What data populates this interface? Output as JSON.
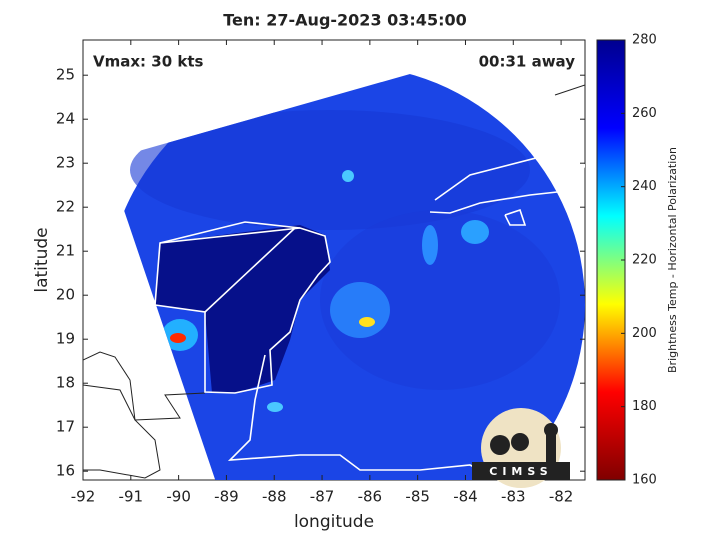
{
  "chart_data": {
    "type": "map",
    "title": "Ten: 27-Aug-2023 03:45:00",
    "annotations": [
      "Vmax: 30 kts",
      "00:31 away"
    ],
    "xlabel": "longitude",
    "ylabel": "latitude",
    "xlim": [
      -92,
      -81.5
    ],
    "ylim": [
      15.8,
      25.8
    ],
    "xticks": [
      -92,
      -91,
      -90,
      -89,
      -88,
      -87,
      -86,
      -85,
      -84,
      -83,
      -82
    ],
    "yticks": [
      16,
      17,
      18,
      19,
      20,
      21,
      22,
      23,
      24,
      25
    ],
    "colorbar": {
      "label": "Brightness Temp - Horizontal Polarization",
      "lim": [
        160,
        280
      ],
      "ticks": [
        160,
        180,
        200,
        220,
        240,
        260,
        280
      ],
      "colormap": [
        "#800000",
        "#ff0000",
        "#ffff00",
        "#00ffff",
        "#0000ff",
        "#00008f"
      ]
    },
    "logo": "CIMSS"
  }
}
